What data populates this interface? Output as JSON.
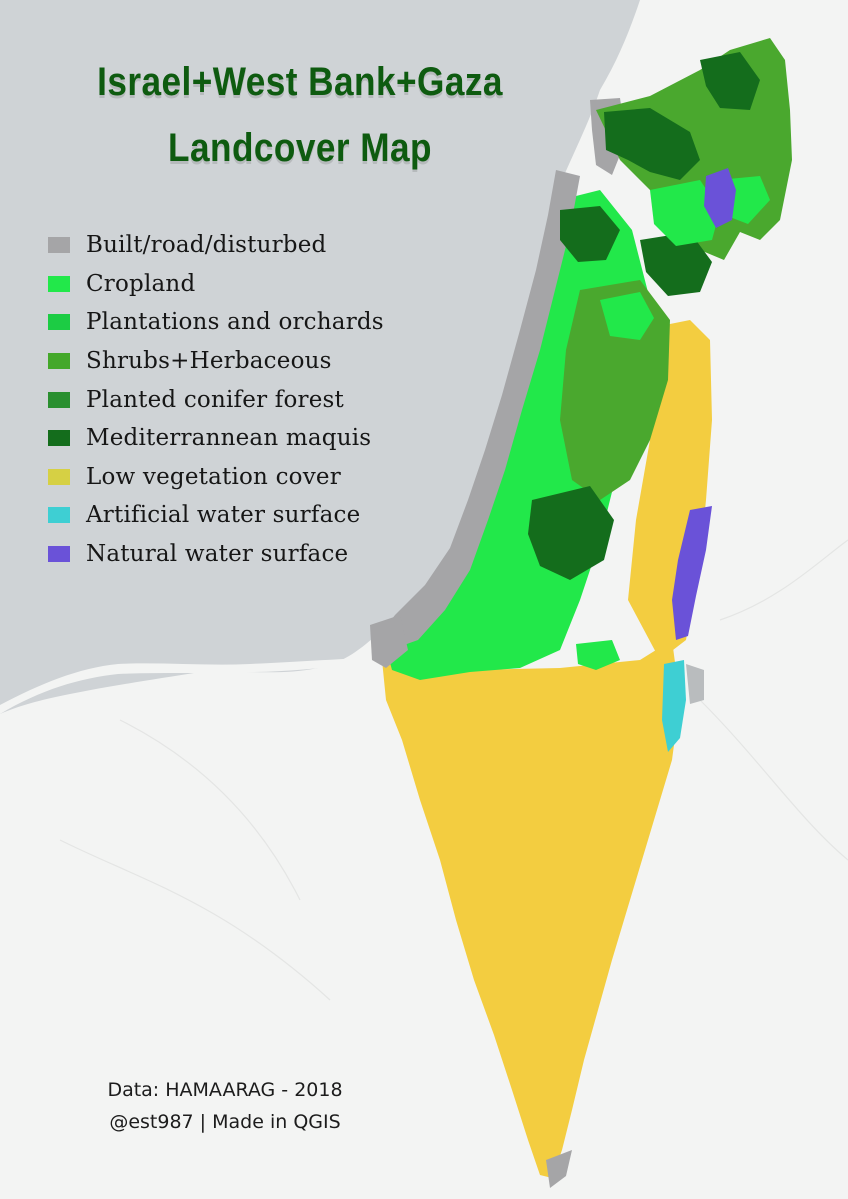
{
  "title": {
    "line1": "Israel+West Bank+Gaza",
    "line2": "Landcover Map"
  },
  "legend": {
    "items": [
      {
        "label": "Built/road/disturbed",
        "color": "#a5a5a7"
      },
      {
        "label": "Cropland",
        "color": "#22e84a"
      },
      {
        "label": "Plantations and orchards",
        "color": "#1ccc44"
      },
      {
        "label": "Shrubs+Herbaceous",
        "color": "#44a82a"
      },
      {
        "label": "Planted conifer forest",
        "color": "#2a8f30"
      },
      {
        "label": "Mediterrannean maquis",
        "color": "#146d1c"
      },
      {
        "label": "Low vegetation cover",
        "color": "#d6d044"
      },
      {
        "label": "Artificial water surface",
        "color": "#3ecfd3"
      },
      {
        "label": "Natural water surface",
        "color": "#6a52d8"
      }
    ]
  },
  "credits": {
    "line1": "Data: HAMAARAG - 2018",
    "line2": "@est987 | Made in QGIS"
  },
  "colors": {
    "sea": "#cfd3d6",
    "land": "#f3f4f3",
    "desert_fill": "#f3cd40",
    "built": "#a5a5a7",
    "cropland": "#22e84a",
    "shrubs": "#4aa82e",
    "maquis": "#146d1c",
    "lake": "#6a52d8",
    "water_artificial": "#3ecfd3",
    "title": "#0e5b10"
  }
}
